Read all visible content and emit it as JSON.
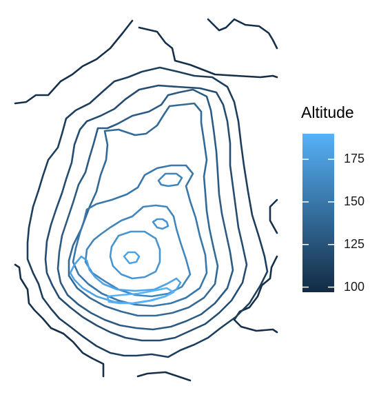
{
  "chart_data": {
    "type": "contour",
    "legend": {
      "title": "Altitude",
      "ticks": [
        100,
        125,
        150,
        175
      ],
      "range": [
        97,
        190
      ],
      "colors": {
        "low": "#132b43",
        "high": "#56b1f7"
      },
      "position": "right"
    },
    "levels": [
      100,
      110,
      120,
      130,
      140,
      150,
      160,
      170,
      180,
      190
    ],
    "grid": false,
    "axes": false
  }
}
